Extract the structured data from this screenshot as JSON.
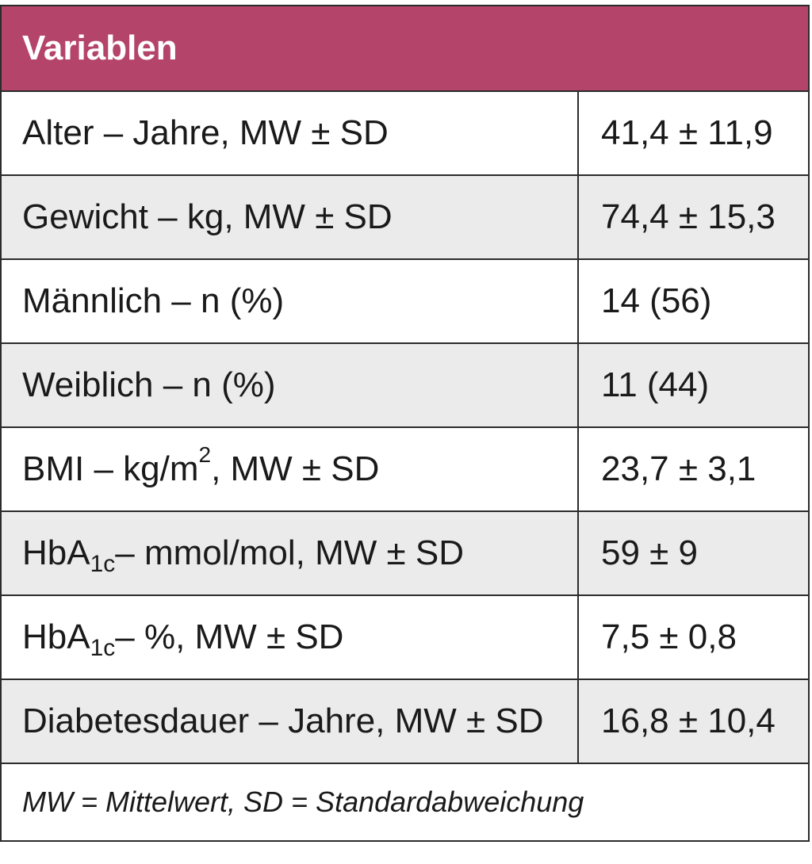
{
  "header": {
    "title": "Variablen"
  },
  "rows": [
    {
      "label": "Alter – Jahre, MW ± SD",
      "value": "41,4 ± 11,9"
    },
    {
      "label": "Gewicht – kg, MW ± SD",
      "value": "74,4 ± 15,3"
    },
    {
      "label": "Männlich – n (%)",
      "value": "14 (56)"
    },
    {
      "label": "Weiblich – n (%)",
      "value": "11 (44)"
    },
    {
      "label_pre": "BMI – kg/m",
      "label_sup": "2",
      "label_post": ", MW ± SD",
      "value": "23,7 ± 3,1"
    },
    {
      "label_pre": "HbA",
      "label_sub": "1c",
      "label_post": " – mmol/mol, MW ± SD",
      "value": "59 ± 9"
    },
    {
      "label_pre": "HbA",
      "label_sub": "1c",
      "label_post": " – %, MW ± SD",
      "value": "7,5 ± 0,8"
    },
    {
      "label": "Diabetesdauer – Jahre, MW ± SD",
      "value": "16,8 ± 10,4"
    }
  ],
  "footnote": "MW = Mittelwert, SD = Standardabweichung",
  "colors": {
    "header_bg": "#b4446a",
    "shaded_row_bg": "#ebebeb",
    "border": "#2b2b2b"
  }
}
